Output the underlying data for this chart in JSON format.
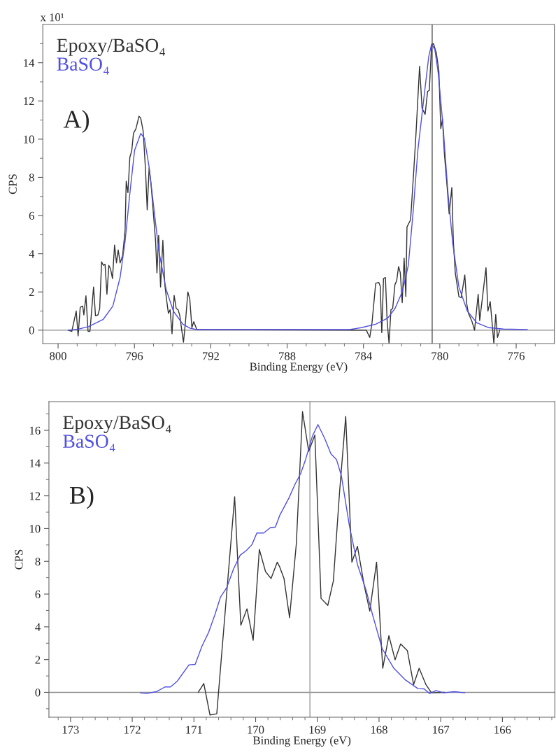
{
  "chart_data": [
    {
      "type": "line",
      "xlabel": "Binding Energy (eV)",
      "ylabel": "CPS",
      "annotations": [
        "A)",
        "x 10¹"
      ],
      "legend": "top left",
      "grid": false,
      "xlim": [
        800.8,
        774.0
      ],
      "ylim": [
        -0.7,
        16
      ],
      "xticks": [
        800,
        {
          "value": 799,
          "label": null
        },
        {
          "value": 798,
          "label": null
        },
        {
          "value": 797,
          "label": null
        },
        796,
        {
          "value": 795,
          "label": null
        },
        {
          "value": 794,
          "label": null
        },
        {
          "value": 793,
          "label": null
        },
        792,
        {
          "value": 791,
          "label": null
        },
        {
          "value": 790,
          "label": null
        },
        {
          "value": 789,
          "label": null
        },
        788,
        {
          "value": 787,
          "label": null
        },
        {
          "value": 786,
          "label": null
        },
        {
          "value": 785,
          "label": null
        },
        784,
        {
          "value": 783,
          "label": null
        },
        {
          "value": 782,
          "label": null
        },
        {
          "value": 781,
          "label": null
        },
        780,
        {
          "value": 779,
          "label": null
        },
        {
          "value": 778,
          "label": null
        },
        {
          "value": 777,
          "label": null
        },
        776,
        {
          "value": 775,
          "label": null
        }
      ],
      "yticks": [
        0,
        {
          "value": 1,
          "label": null
        },
        2,
        {
          "value": 3,
          "label": null
        },
        4,
        {
          "value": 5,
          "label": null
        },
        6,
        {
          "value": 7,
          "label": null
        },
        8,
        {
          "value": 9,
          "label": null
        },
        10,
        {
          "value": 11,
          "label": null
        },
        12,
        {
          "value": 13,
          "label": null
        },
        14,
        {
          "value": 15,
          "label": null
        }
      ],
      "ref_lines": [
        {
          "axis": "y",
          "value": 0,
          "color": "#8c8c8c"
        },
        {
          "axis": "x",
          "value": 780.4,
          "color": "#555555"
        }
      ],
      "series": [
        {
          "name": "Epoxy/BaSO₄",
          "color": "#333333",
          "x": [
            799.47,
            799.28,
            799.05,
            798.95,
            798.84,
            798.71,
            798.65,
            798.54,
            798.43,
            798.33,
            798.14,
            798.04,
            797.91,
            797.82,
            797.72,
            797.63,
            797.54,
            797.44,
            797.34,
            797.25,
            797.15,
            797.04,
            796.94,
            796.85,
            796.75,
            796.62,
            796.49,
            796.43,
            796.34,
            796.24,
            796.14,
            796.05,
            795.92,
            795.76,
            795.67,
            795.54,
            795.42,
            795.33,
            795.23,
            795.13,
            795.01,
            794.89,
            794.82,
            794.73,
            794.63,
            794.51,
            794.41,
            794.32,
            794.22,
            794.13,
            794.03,
            793.92,
            793.81,
            793.71,
            793.62,
            793.52,
            793.43,
            793.33,
            793.2,
            793.1,
            792.99,
            792.89,
            792.73,
            783.85,
            783.67,
            783.55,
            783.36,
            783.2,
            783.12,
            783.04,
            782.95,
            782.85,
            782.76,
            782.66,
            782.56,
            782.47,
            782.35,
            782.26,
            782.16,
            782.07,
            781.97,
            781.87,
            781.78,
            781.72,
            781.53,
            781.36,
            781.24,
            781.06,
            780.93,
            780.77,
            780.64,
            780.55,
            780.43,
            780.33,
            780.18,
            780.05,
            779.95,
            779.86,
            779.76,
            779.61,
            779.51,
            779.37,
            779.29,
            779.19,
            779.0,
            778.88,
            778.69,
            778.59,
            778.5,
            778.31,
            778.18,
            777.99,
            777.91,
            777.58,
            777.48,
            777.36,
            777.27,
            777.17,
            777.07,
            776.98,
            776.86
          ],
          "values": [
            0,
            -0.06,
            1.0,
            -0.3,
            1.2,
            1.26,
            0.8,
            1.8,
            -0.06,
            -0.06,
            2.26,
            0.75,
            0.8,
            1.13,
            3.58,
            3.39,
            3.45,
            1.88,
            3.39,
            3.2,
            2.7,
            4.46,
            3.52,
            4.2,
            3.52,
            3.9,
            5.2,
            7.8,
            7.2,
            9.05,
            9.4,
            10.3,
            10.55,
            11.2,
            11.1,
            10.4,
            8.4,
            6.3,
            8.5,
            7.65,
            6.15,
            4.65,
            3.0,
            4.96,
            2.26,
            4.7,
            2.4,
            1.63,
            0.88,
            1.07,
            -0.19,
            1.82,
            1.13,
            1.07,
            0.75,
            0,
            -0.63,
            0.38,
            2.0,
            1.63,
            0.13,
            0.44,
            0.03,
            0,
            -0.38,
            0.4,
            2.45,
            2.5,
            2.3,
            -0.13,
            2.7,
            2.76,
            0.5,
            -0.69,
            1.07,
            1.13,
            2.39,
            2.58,
            3.33,
            3.0,
            1.44,
            3.77,
            1.76,
            5.4,
            5.78,
            8.42,
            10.43,
            13.82,
            11.62,
            11.3,
            12.5,
            12.55,
            14.95,
            15.0,
            14.5,
            13.57,
            10.55,
            11.06,
            9.23,
            7.41,
            6.09,
            7.47,
            4.65,
            3.0,
            1.76,
            1.7,
            2.89,
            1.38,
            0.88,
            0.44,
            0,
            1.88,
            0.5,
            3.27,
            1.0,
            1.5,
            0.5,
            -0.69,
            0.82,
            -0.38,
            0
          ]
        },
        {
          "name": "BaSO₄",
          "color": "#5050e0",
          "x": [
            799.47,
            798.9,
            798.39,
            797.63,
            797.13,
            796.75,
            796.49,
            796.24,
            795.99,
            795.67,
            795.48,
            795.23,
            794.97,
            794.72,
            794.34,
            793.96,
            793.46,
            793.08,
            792.73,
            784.74,
            784.11,
            783.36,
            782.73,
            782.35,
            781.97,
            781.65,
            781.4,
            781.15,
            780.83,
            780.58,
            780.43,
            780.26,
            780.08,
            779.82,
            779.57,
            779.32,
            779.0,
            778.56,
            778.06,
            777.43,
            776.67,
            775.41
          ],
          "values": [
            0,
            0.06,
            0.19,
            0.57,
            1.26,
            2.76,
            4.65,
            7.16,
            9.42,
            10.3,
            10.05,
            8.54,
            6.28,
            4.15,
            2.14,
            1.0,
            0.31,
            0.1,
            0.03,
            0.03,
            0.13,
            0.31,
            0.63,
            1.13,
            2.0,
            3.39,
            6.16,
            9.42,
            12.19,
            14.32,
            14.97,
            14.7,
            13.44,
            10.55,
            7.16,
            4.52,
            2.26,
            1.0,
            0.38,
            0.13,
            0.06,
            0.03
          ]
        }
      ]
    },
    {
      "type": "line",
      "xlabel": "Binding Energy (eV)",
      "ylabel": "CPS",
      "annotations": [
        "B)"
      ],
      "legend": "top left",
      "grid": false,
      "xlim": [
        173.35,
        165.15
      ],
      "ylim": [
        -1.52,
        17.75
      ],
      "xticks": [
        {
          "value": 173.2,
          "label": null
        },
        173,
        {
          "value": 172.8,
          "label": null
        },
        {
          "value": 172.6,
          "label": null
        },
        {
          "value": 172.4,
          "label": null
        },
        {
          "value": 172.2,
          "label": null
        },
        172,
        {
          "value": 171.8,
          "label": null
        },
        {
          "value": 171.6,
          "label": null
        },
        {
          "value": 171.4,
          "label": null
        },
        {
          "value": 171.2,
          "label": null
        },
        171,
        {
          "value": 170.8,
          "label": null
        },
        {
          "value": 170.6,
          "label": null
        },
        {
          "value": 170.4,
          "label": null
        },
        {
          "value": 170.2,
          "label": null
        },
        170,
        {
          "value": 169.8,
          "label": null
        },
        {
          "value": 169.6,
          "label": null
        },
        {
          "value": 169.4,
          "label": null
        },
        {
          "value": 169.2,
          "label": null
        },
        169,
        {
          "value": 168.8,
          "label": null
        },
        {
          "value": 168.6,
          "label": null
        },
        {
          "value": 168.4,
          "label": null
        },
        {
          "value": 168.2,
          "label": null
        },
        168,
        {
          "value": 167.8,
          "label": null
        },
        {
          "value": 167.6,
          "label": null
        },
        {
          "value": 167.4,
          "label": null
        },
        {
          "value": 167.2,
          "label": null
        },
        167,
        {
          "value": 166.8,
          "label": null
        },
        {
          "value": 166.6,
          "label": null
        },
        {
          "value": 166.4,
          "label": null
        },
        {
          "value": 166.2,
          "label": null
        },
        166,
        {
          "value": 165.8,
          "label": null
        },
        {
          "value": 165.6,
          "label": null
        },
        {
          "value": 165.4,
          "label": null
        },
        {
          "value": 165.2,
          "label": null
        }
      ],
      "yticks": [
        {
          "value": -1,
          "label": null
        },
        0,
        {
          "value": 1,
          "label": null
        },
        2,
        {
          "value": 3,
          "label": null
        },
        4,
        {
          "value": 5,
          "label": null
        },
        6,
        {
          "value": 7,
          "label": null
        },
        8,
        {
          "value": 9,
          "label": null
        },
        10,
        {
          "value": 11,
          "label": null
        },
        12,
        {
          "value": 13,
          "label": null
        },
        14,
        {
          "value": 15,
          "label": null
        },
        16,
        {
          "value": 17,
          "label": null
        }
      ],
      "ref_lines": [
        {
          "axis": "y",
          "value": 0,
          "color": "#8c8c8c"
        },
        {
          "axis": "x",
          "value": 169.12,
          "color": "#999999"
        }
      ],
      "series": [
        {
          "name": "Epoxy/BaSO₄",
          "color": "#333333",
          "x": [
            170.93,
            170.84,
            170.74,
            170.63,
            170.53,
            170.34,
            170.24,
            170.14,
            170.04,
            169.94,
            169.84,
            169.75,
            169.65,
            169.61,
            169.54,
            169.45,
            169.34,
            169.24,
            169.14,
            169.04,
            168.94,
            168.83,
            168.74,
            168.64,
            168.54,
            168.44,
            168.35,
            168.24,
            168.15,
            168.04,
            167.94,
            167.84,
            167.74,
            167.65,
            167.54,
            167.44,
            167.35,
            167.24,
            167.15,
            167.11,
            166.98,
            166.94
          ],
          "values": [
            0,
            0.54,
            -1.38,
            -1.31,
            null,
            11.94,
            4.1,
            5.1,
            3.18,
            8.73,
            7.38,
            6.95,
            7.95,
            7.66,
            6.95,
            4.56,
            9.09,
            17.14,
            14.72,
            15.71,
            5.74,
            5.31,
            6.81,
            12.22,
            16.85,
            7.95,
            8.92,
            6.52,
            4.96,
            7.95,
            1.47,
            3.46,
            1.99,
            2.96,
            2.54,
            0.47,
            1.47,
            0.47,
            -0.03,
            null,
            null,
            0
          ]
        },
        {
          "name": "BaSO₄",
          "color": "#5050e0",
          "x": [
            171.87,
            171.77,
            171.61,
            171.47,
            171.38,
            171.27,
            171.08,
            170.98,
            170.87,
            170.76,
            170.66,
            170.57,
            170.47,
            170.36,
            170.25,
            170.15,
            170.06,
            169.98,
            169.87,
            169.76,
            169.68,
            169.61,
            169.46,
            169.36,
            169.27,
            169.19,
            169.08,
            168.99,
            168.88,
            168.78,
            168.69,
            168.61,
            168.48,
            168.35,
            168.21,
            168.1,
            167.95,
            167.76,
            167.57,
            167.37,
            167.27,
            167.18,
            167.08,
            166.95,
            166.78,
            166.61
          ],
          "values": [
            -0.03,
            -0.07,
            0.04,
            0.33,
            0.33,
            0.68,
            1.68,
            1.71,
            2.82,
            3.68,
            4.74,
            5.81,
            6.38,
            7.52,
            8.38,
            8.66,
            9.02,
            9.73,
            9.73,
            10.06,
            10.09,
            10.8,
            11.87,
            12.72,
            13.36,
            14.22,
            15.64,
            16.35,
            15.5,
            14.57,
            14.22,
            13.22,
            10.16,
            7.81,
            6.24,
            4.67,
            2.68,
            1.47,
            0.75,
            0.23,
            0.21,
            -0.07,
            0.11,
            -0.03,
            0.04,
            -0.03
          ]
        }
      ]
    }
  ]
}
